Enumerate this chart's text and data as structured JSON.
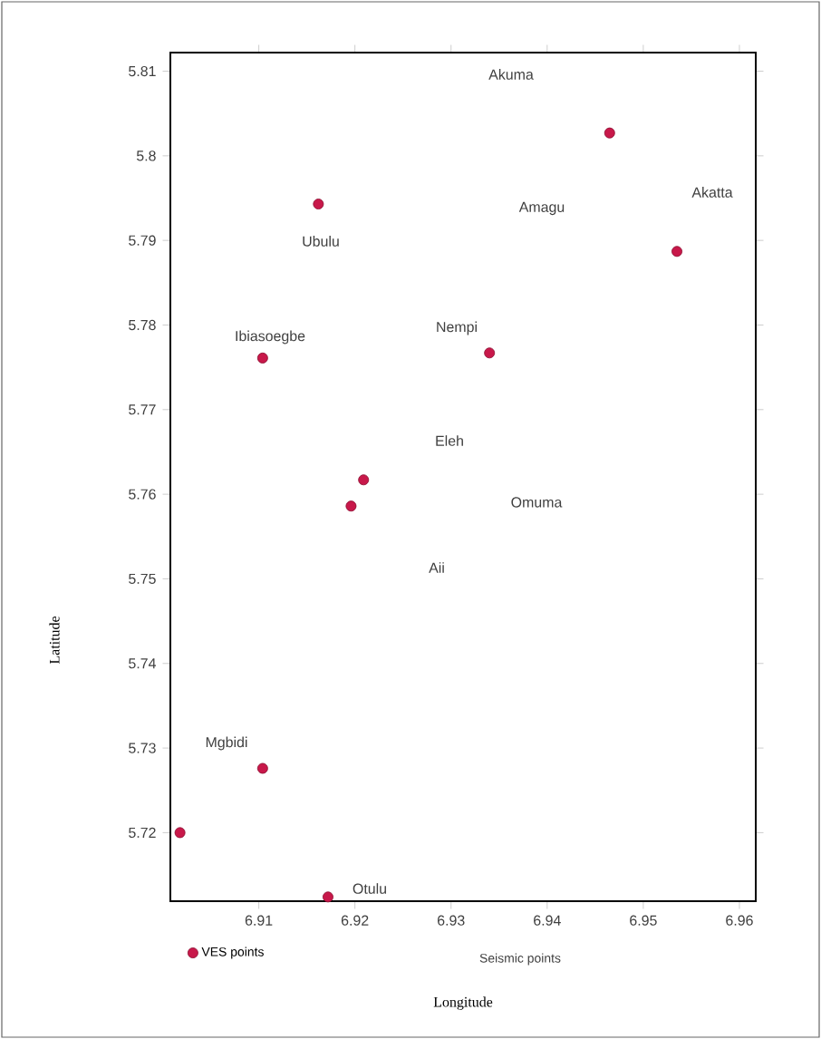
{
  "chart_data": {
    "type": "scatter",
    "xlabel": "Longitude",
    "ylabel": "Latitude",
    "xlim": [
      6.9008,
      6.9617
    ],
    "ylim": [
      5.7119,
      5.8122
    ],
    "xticks": [
      6.91,
      6.92,
      6.93,
      6.94,
      6.95,
      6.96
    ],
    "yticks": [
      5.72,
      5.73,
      5.74,
      5.75,
      5.76,
      5.77,
      5.78,
      5.79,
      5.8,
      5.81
    ],
    "series": [
      {
        "name": "VES points",
        "color": "#c8184a",
        "x": [
          6.9465,
          6.9162,
          6.9535,
          6.9104,
          6.934,
          6.9209,
          6.9196,
          6.9104,
          6.9018,
          6.9172
        ],
        "values": [
          5.8027,
          5.7943,
          5.7887,
          5.7761,
          5.7767,
          5.7617,
          5.7586,
          5.7276,
          5.72,
          5.7124
        ]
      }
    ],
    "marker": "circle",
    "legend": "bottom",
    "grid": false,
    "annotations": [
      "Akuma",
      "Amagu",
      "Akatta",
      "Ubulu",
      "Ibiasoegbe",
      "Nempi",
      "Eleh",
      "Omuma",
      "Aii",
      "Mgbidi",
      "Otulu",
      "Seismic points"
    ]
  }
}
